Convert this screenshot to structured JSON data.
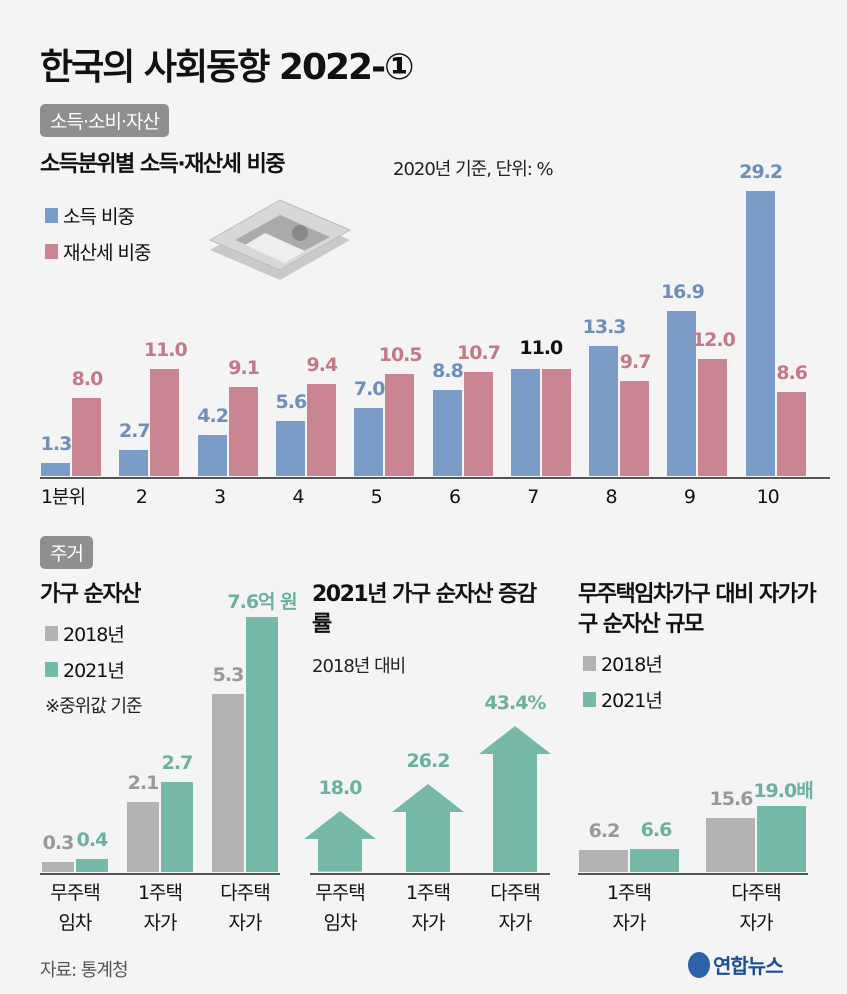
{
  "title": "한국의 사회동향 2022-①",
  "section1": {
    "tag": "소득·소비·자산",
    "heading": "소득분위별 소득·재산세 비중",
    "note": "2020년 기준, 단위: %",
    "icon": "money-stack-icon"
  },
  "section2": {
    "tag": "주거"
  },
  "source": "자료: 통계청",
  "logo": "연합뉴스",
  "colors": {
    "income": "#7b9cc7",
    "tax": "#c98592",
    "y2018": "#b3b3b3",
    "y2021": "#77b9a9",
    "income_label": "#6f8fb8",
    "tax_label": "#c27a88",
    "grey_label": "#999999",
    "teal_label": "#6bb0a0"
  },
  "chart_data": [
    {
      "type": "bar",
      "title": "소득분위별 소득·재산세 비중",
      "subtitle": "2020년 기준, 단위: %",
      "categories": [
        "1분위",
        "2",
        "3",
        "4",
        "5",
        "6",
        "7",
        "8",
        "9",
        "10"
      ],
      "series": [
        {
          "name": "소득 비중",
          "values": [
            1.3,
            2.7,
            4.2,
            5.6,
            7.0,
            8.8,
            11.0,
            13.3,
            16.9,
            29.2
          ]
        },
        {
          "name": "재산세 비중",
          "values": [
            8.0,
            11.0,
            9.1,
            9.4,
            10.5,
            10.7,
            11.0,
            9.7,
            12.0,
            8.6
          ]
        }
      ],
      "data_labels": [
        [
          "1.3",
          "2.7",
          "4.2",
          "5.6",
          "7.0",
          "8.8",
          "11.0",
          "13.3",
          "16.9",
          "29.2"
        ],
        [
          "8.0",
          "11.0",
          "9.1",
          "9.4",
          "10.5",
          "10.7",
          "",
          "9.7",
          "12.0",
          "8.6"
        ]
      ],
      "legend": "top-left",
      "ylim": [
        0,
        30
      ]
    },
    {
      "type": "bar",
      "title": "가구 순자산",
      "note": "※중위값 기준",
      "categories": [
        [
          "무주택",
          "임차"
        ],
        [
          "1주택",
          "자가"
        ],
        [
          "다주택",
          "자가"
        ]
      ],
      "series": [
        {
          "name": "2018년",
          "values": [
            0.3,
            2.1,
            5.3
          ]
        },
        {
          "name": "2021년",
          "values": [
            0.4,
            2.7,
            7.6
          ]
        }
      ],
      "data_labels": [
        [
          "0.3",
          "2.1",
          "5.3"
        ],
        [
          "0.4",
          "2.7",
          "7.6억 원"
        ]
      ],
      "legend": "top-left",
      "ylim": [
        0,
        7.6
      ]
    },
    {
      "type": "bar",
      "title": "2021년 가구 순자산 증감률",
      "subtitle": "2018년 대비",
      "categories": [
        [
          "무주택",
          "임차"
        ],
        [
          "1주택",
          "자가"
        ],
        [
          "다주택",
          "자가"
        ]
      ],
      "values": [
        18.0,
        26.2,
        43.4
      ],
      "data_labels": [
        "18.0",
        "26.2",
        "43.4%"
      ],
      "marker": "arrow-up"
    },
    {
      "type": "bar",
      "title": "무주택임차가구 대비 자가가구 순자산 규모",
      "categories": [
        [
          "1주택",
          "자가"
        ],
        [
          "다주택",
          "자가"
        ]
      ],
      "series": [
        {
          "name": "2018년",
          "values": [
            6.2,
            15.6
          ]
        },
        {
          "name": "2021년",
          "values": [
            6.6,
            19.0
          ]
        }
      ],
      "data_labels": [
        [
          "6.2",
          "15.6"
        ],
        [
          "6.6",
          "19.0배"
        ]
      ],
      "legend": "top-left"
    }
  ]
}
